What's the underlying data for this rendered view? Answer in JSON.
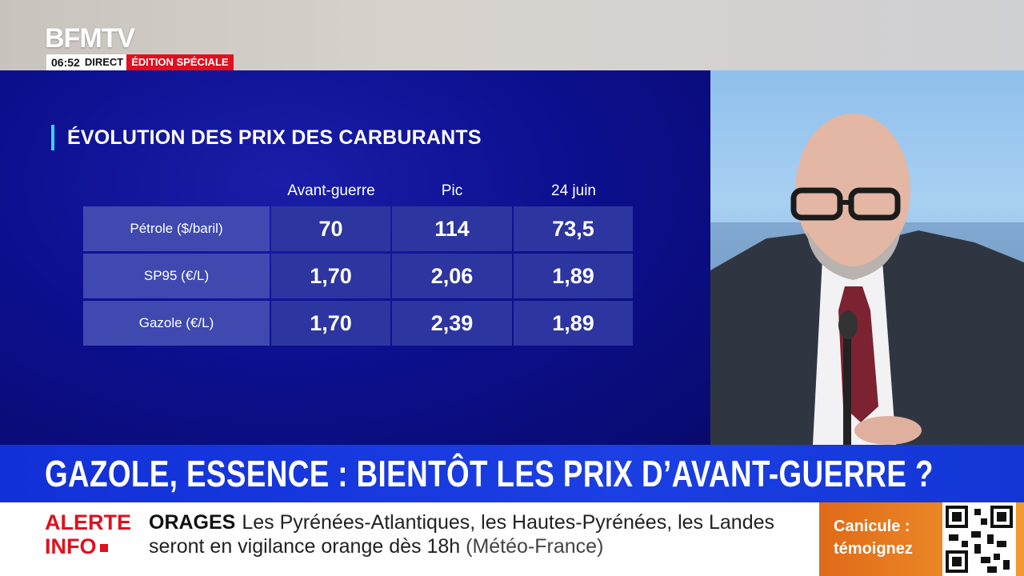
{
  "channel": {
    "logo": "BFMTV",
    "time": "06:52",
    "live": "DIRECT",
    "edition": "ÉDITION SPÉCIALE"
  },
  "graphic": {
    "title": "ÉVOLUTION DES PRIX DES CARBURANTS",
    "columns": [
      "Avant-guerre",
      "Pic",
      "24 juin"
    ],
    "rows": [
      {
        "label": "Pétrole ($/baril)",
        "values": [
          "70",
          "114",
          "73,5"
        ]
      },
      {
        "label": "SP95 (€/L)",
        "values": [
          "1,70",
          "2,06",
          "1,89"
        ]
      },
      {
        "label": "Gazole (€/L)",
        "values": [
          "1,70",
          "2,39",
          "1,89"
        ]
      }
    ]
  },
  "headline": "GAZOLE, ESSENCE : BIENTÔT LES PRIX D’AVANT-GUERRE ?",
  "ticker": {
    "alert_line1": "ALERTE",
    "alert_line2": "INFO",
    "tag": "ORAGES",
    "text": "Les Pyrénées-Atlantiques, les Hautes-Pyrénées, les Landes seront en vigilance orange dès 18h",
    "source": "(Météo-France)"
  },
  "promo": {
    "line1": "Canicule :",
    "line2": "témoignez"
  },
  "colors": {
    "accent_red": "#e0101e",
    "headline_blue": "#1b3fe3",
    "panel_blue": "#0d1090",
    "title_bar_cyan": "#3ad1ff",
    "promo_orange": "#f29a30"
  }
}
